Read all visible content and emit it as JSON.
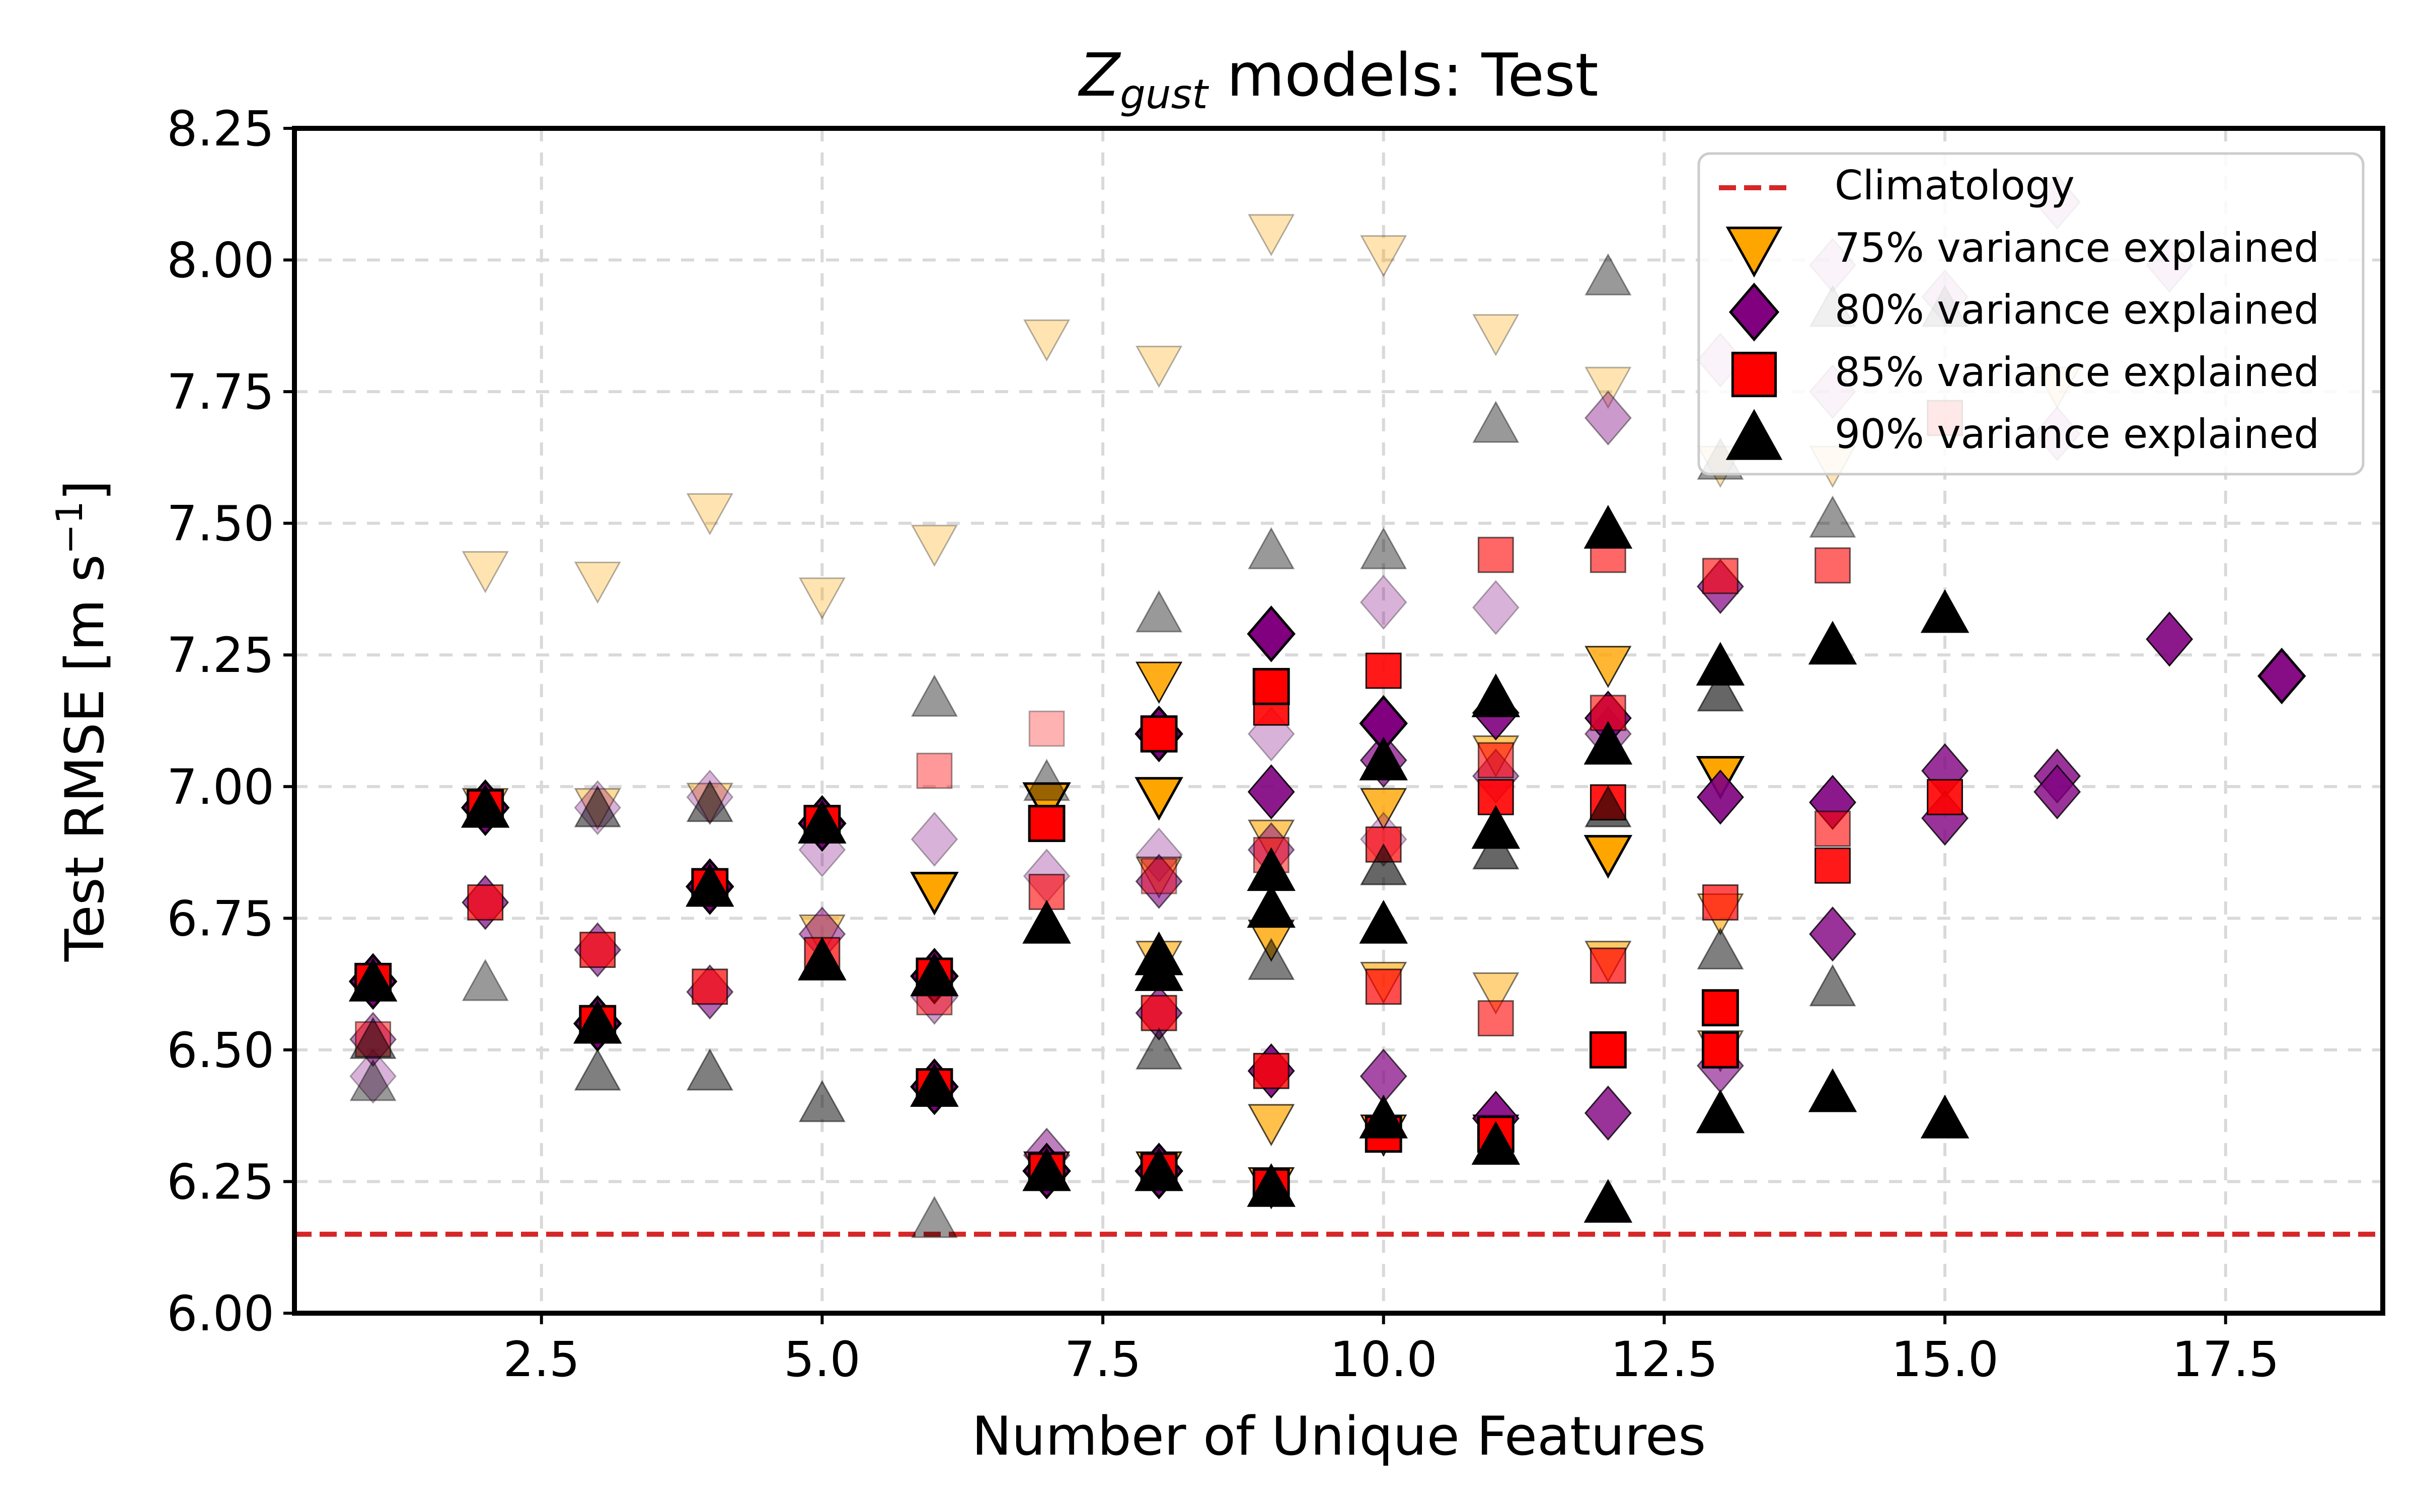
{
  "chart_data": {
    "type": "scatter",
    "title_italic": "Z",
    "title_sub": "gust",
    "title_rest": " models: Test",
    "xlabel": "Number of Unique Features",
    "ylabel": "Test RMSE [m s",
    "ylabel_sup": "−1",
    "ylabel_close": "]",
    "xlim": [
      0.3,
      18.9
    ],
    "ylim": [
      6.0,
      8.25
    ],
    "xticks": [
      2.5,
      5.0,
      7.5,
      10.0,
      12.5,
      15.0,
      17.5
    ],
    "xtick_labels": [
      "2.5",
      "5.0",
      "7.5",
      "10.0",
      "12.5",
      "15.0",
      "17.5"
    ],
    "yticks": [
      6.0,
      6.25,
      6.5,
      6.75,
      7.0,
      7.25,
      7.5,
      7.75,
      8.0,
      8.25
    ],
    "ytick_labels": [
      "6.00",
      "6.25",
      "6.50",
      "6.75",
      "7.00",
      "7.25",
      "7.50",
      "7.75",
      "8.00",
      "8.25"
    ],
    "grid": true,
    "legend_position": "top-right",
    "climatology": {
      "label": "Climatology",
      "y": 6.15,
      "color": "#d62728"
    },
    "series": [
      {
        "name": "75% variance explained",
        "marker": "triangle-down",
        "color": "#ffa500",
        "points": [
          [
            2,
            7.41,
            0.3
          ],
          [
            3,
            7.39,
            0.3
          ],
          [
            4,
            7.52,
            0.3
          ],
          [
            5,
            7.36,
            0.3
          ],
          [
            6,
            7.46,
            0.3
          ],
          [
            7,
            7.85,
            0.3
          ],
          [
            8,
            7.8,
            0.3
          ],
          [
            9,
            8.05,
            0.3
          ],
          [
            10,
            8.01,
            0.3
          ],
          [
            11,
            7.86,
            0.3
          ],
          [
            12,
            7.76,
            0.3
          ],
          [
            13,
            7.61,
            0.3
          ],
          [
            14,
            7.61,
            0.3
          ],
          [
            16,
            7.76,
            0.3
          ],
          [
            2,
            6.96,
            0.6
          ],
          [
            3,
            6.96,
            0.4
          ],
          [
            4,
            6.97,
            0.4
          ],
          [
            5,
            6.72,
            0.5
          ],
          [
            6,
            6.8,
            1.0
          ],
          [
            7,
            6.97,
            1.0
          ],
          [
            8,
            6.98,
            1.0
          ],
          [
            8,
            7.2,
            0.9
          ],
          [
            8,
            6.67,
            0.6
          ],
          [
            8,
            6.83,
            0.6
          ],
          [
            9,
            6.9,
            0.6
          ],
          [
            9,
            6.71,
            0.8
          ],
          [
            9,
            6.36,
            0.7
          ],
          [
            10,
            6.96,
            0.8
          ],
          [
            10,
            6.63,
            0.6
          ],
          [
            11,
            7.06,
            0.6
          ],
          [
            11,
            6.61,
            0.5
          ],
          [
            12,
            7.23,
            0.8
          ],
          [
            12,
            6.87,
            1.0
          ],
          [
            12,
            6.67,
            0.6
          ],
          [
            13,
            7.02,
            1.0
          ],
          [
            13,
            6.76,
            0.6
          ],
          [
            13,
            6.5,
            0.6
          ],
          [
            7,
            6.27,
            0.9
          ],
          [
            8,
            6.27,
            0.9
          ],
          [
            9,
            6.24,
            0.9
          ],
          [
            10,
            6.34,
            0.9
          ],
          [
            11,
            6.34,
            0.9
          ]
        ]
      },
      {
        "name": "80% variance explained",
        "marker": "diamond",
        "color": "#800080",
        "points": [
          [
            1,
            6.45,
            0.3
          ],
          [
            1,
            6.52,
            0.5
          ],
          [
            2,
            6.78,
            0.7
          ],
          [
            3,
            6.69,
            0.6
          ],
          [
            3,
            6.96,
            0.3
          ],
          [
            4,
            6.61,
            0.6
          ],
          [
            4,
            6.98,
            0.3
          ],
          [
            5,
            6.72,
            0.5
          ],
          [
            5,
            6.88,
            0.3
          ],
          [
            6,
            6.9,
            0.3
          ],
          [
            6,
            6.6,
            0.4
          ],
          [
            7,
            6.83,
            0.3
          ],
          [
            7,
            6.3,
            0.5
          ],
          [
            8,
            6.87,
            0.3
          ],
          [
            8,
            6.82,
            0.6
          ],
          [
            8,
            6.57,
            0.7
          ],
          [
            9,
            7.1,
            0.3
          ],
          [
            9,
            6.88,
            0.5
          ],
          [
            9,
            6.99,
            0.9
          ],
          [
            9,
            6.46,
            0.9
          ],
          [
            10,
            7.35,
            0.3
          ],
          [
            10,
            6.9,
            0.3
          ],
          [
            10,
            7.05,
            0.7
          ],
          [
            10,
            6.45,
            0.7
          ],
          [
            11,
            7.34,
            0.3
          ],
          [
            11,
            7.02,
            0.5
          ],
          [
            11,
            7.14,
            0.9
          ],
          [
            11,
            6.37,
            0.9
          ],
          [
            12,
            7.7,
            0.4
          ],
          [
            12,
            7.1,
            0.5
          ],
          [
            12,
            7.13,
            0.9
          ],
          [
            12,
            6.38,
            0.8
          ],
          [
            13,
            7.81,
            0.3
          ],
          [
            13,
            7.38,
            0.7
          ],
          [
            13,
            6.98,
            0.9
          ],
          [
            13,
            6.47,
            0.6
          ],
          [
            14,
            7.99,
            0.3
          ],
          [
            14,
            7.75,
            0.3
          ],
          [
            14,
            6.97,
            0.9
          ],
          [
            14,
            6.72,
            0.8
          ],
          [
            15,
            7.93,
            0.3
          ],
          [
            15,
            7.03,
            0.8
          ],
          [
            15,
            6.94,
            0.8
          ],
          [
            16,
            8.11,
            0.3
          ],
          [
            16,
            7.67,
            0.3
          ],
          [
            16,
            7.02,
            0.8
          ],
          [
            16,
            6.99,
            0.8
          ],
          [
            17,
            7.99,
            0.3
          ],
          [
            17,
            7.28,
            0.9
          ],
          [
            18,
            7.21,
            0.95
          ],
          [
            1,
            6.63,
            1.0
          ],
          [
            2,
            6.96,
            1.0
          ],
          [
            3,
            6.55,
            1.0
          ],
          [
            4,
            6.81,
            1.0
          ],
          [
            5,
            6.93,
            1.0
          ],
          [
            6,
            6.43,
            1.0
          ],
          [
            6,
            6.64,
            1.0
          ],
          [
            7,
            6.27,
            1.0
          ],
          [
            8,
            6.27,
            1.0
          ],
          [
            8,
            7.1,
            1.0
          ],
          [
            9,
            7.29,
            1.0
          ],
          [
            10,
            7.12,
            1.0
          ]
        ]
      },
      {
        "name": "85% variance explained",
        "marker": "square",
        "color": "#ff0000",
        "points": [
          [
            1,
            6.52,
            0.5
          ],
          [
            2,
            6.78,
            0.7
          ],
          [
            3,
            6.69,
            0.7
          ],
          [
            4,
            6.62,
            0.7
          ],
          [
            5,
            6.68,
            0.7
          ],
          [
            6,
            7.03,
            0.4
          ],
          [
            6,
            6.6,
            0.5
          ],
          [
            7,
            7.11,
            0.3
          ],
          [
            7,
            6.8,
            0.6
          ],
          [
            8,
            6.83,
            0.4
          ],
          [
            8,
            6.57,
            0.7
          ],
          [
            9,
            6.87,
            0.5
          ],
          [
            9,
            6.46,
            0.8
          ],
          [
            9,
            7.15,
            0.9
          ],
          [
            10,
            7.22,
            0.9
          ],
          [
            10,
            6.89,
            0.7
          ],
          [
            10,
            6.62,
            0.7
          ],
          [
            11,
            7.44,
            0.6
          ],
          [
            11,
            7.05,
            0.6
          ],
          [
            11,
            6.98,
            0.9
          ],
          [
            11,
            6.56,
            0.6
          ],
          [
            12,
            7.44,
            0.6
          ],
          [
            12,
            7.14,
            0.6
          ],
          [
            12,
            6.97,
            0.9
          ],
          [
            12,
            6.66,
            0.7
          ],
          [
            13,
            7.4,
            0.6
          ],
          [
            13,
            6.78,
            0.7
          ],
          [
            13,
            6.58,
            1.0
          ],
          [
            14,
            7.42,
            0.6
          ],
          [
            14,
            6.92,
            0.6
          ],
          [
            14,
            6.85,
            0.9
          ],
          [
            15,
            7.7,
            0.6
          ],
          [
            15,
            6.98,
            0.9
          ],
          [
            1,
            6.63,
            1.0
          ],
          [
            2,
            6.96,
            1.0
          ],
          [
            3,
            6.55,
            1.0
          ],
          [
            4,
            6.81,
            1.0
          ],
          [
            5,
            6.93,
            1.0
          ],
          [
            6,
            6.43,
            1.0
          ],
          [
            6,
            6.64,
            1.0
          ],
          [
            7,
            6.27,
            1.0
          ],
          [
            7,
            6.93,
            1.0
          ],
          [
            8,
            6.27,
            1.0
          ],
          [
            8,
            7.1,
            1.0
          ],
          [
            9,
            6.24,
            1.0
          ],
          [
            9,
            7.19,
            1.0
          ],
          [
            10,
            6.34,
            1.0
          ],
          [
            11,
            6.34,
            1.0
          ],
          [
            12,
            6.5,
            1.0
          ],
          [
            13,
            6.5,
            1.0
          ]
        ]
      },
      {
        "name": "90% variance explained",
        "marker": "triangle-up",
        "color": "#000000",
        "points": [
          [
            1,
            6.44,
            0.4
          ],
          [
            1,
            6.52,
            0.5
          ],
          [
            2,
            6.63,
            0.4
          ],
          [
            2,
            6.96,
            0.6
          ],
          [
            3,
            6.46,
            0.5
          ],
          [
            3,
            6.96,
            0.5
          ],
          [
            4,
            6.46,
            0.5
          ],
          [
            4,
            6.97,
            0.5
          ],
          [
            5,
            6.4,
            0.5
          ],
          [
            6,
            6.18,
            0.4
          ],
          [
            6,
            7.17,
            0.4
          ],
          [
            7,
            7.01,
            0.4
          ],
          [
            8,
            7.33,
            0.4
          ],
          [
            8,
            6.5,
            0.5
          ],
          [
            9,
            7.45,
            0.4
          ],
          [
            9,
            6.67,
            0.5
          ],
          [
            10,
            7.45,
            0.4
          ],
          [
            10,
            6.85,
            0.6
          ],
          [
            11,
            7.69,
            0.4
          ],
          [
            11,
            6.88,
            0.6
          ],
          [
            12,
            7.97,
            0.4
          ],
          [
            12,
            6.96,
            0.6
          ],
          [
            13,
            7.62,
            0.4
          ],
          [
            13,
            7.18,
            0.6
          ],
          [
            13,
            6.69,
            0.5
          ],
          [
            14,
            7.91,
            0.4
          ],
          [
            14,
            7.51,
            0.4
          ],
          [
            14,
            6.62,
            0.5
          ],
          [
            15,
            7.91,
            0.4
          ],
          [
            1,
            6.63,
            1.0
          ],
          [
            2,
            6.96,
            1.0
          ],
          [
            3,
            6.55,
            1.0
          ],
          [
            4,
            6.81,
            1.0
          ],
          [
            5,
            6.67,
            1.0
          ],
          [
            5,
            6.93,
            1.0
          ],
          [
            6,
            6.43,
            1.0
          ],
          [
            6,
            6.64,
            1.0
          ],
          [
            7,
            6.27,
            1.0
          ],
          [
            7,
            6.74,
            1.0
          ],
          [
            8,
            6.27,
            1.0
          ],
          [
            8,
            6.65,
            1.0
          ],
          [
            8,
            6.68,
            1.0
          ],
          [
            9,
            6.24,
            1.0
          ],
          [
            9,
            6.77,
            1.0
          ],
          [
            9,
            6.84,
            1.0
          ],
          [
            10,
            6.37,
            1.0
          ],
          [
            10,
            6.74,
            1.0
          ],
          [
            10,
            7.05,
            1.0
          ],
          [
            11,
            6.32,
            1.0
          ],
          [
            11,
            6.92,
            1.0
          ],
          [
            11,
            7.17,
            1.0
          ],
          [
            12,
            6.21,
            1.0
          ],
          [
            12,
            7.08,
            1.0
          ],
          [
            12,
            7.49,
            1.0
          ],
          [
            13,
            6.38,
            1.0
          ],
          [
            13,
            7.23,
            1.0
          ],
          [
            14,
            6.42,
            1.0
          ],
          [
            14,
            7.27,
            1.0
          ],
          [
            15,
            6.37,
            1.0
          ],
          [
            15,
            7.33,
            1.0
          ]
        ]
      }
    ]
  }
}
